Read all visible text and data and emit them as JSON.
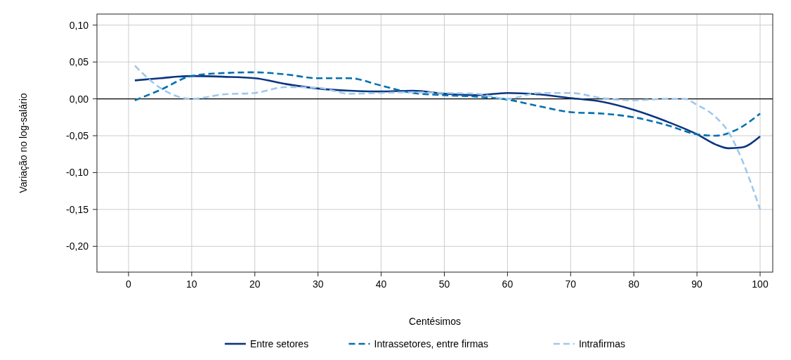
{
  "chart_data": {
    "type": "line",
    "xlabel": "Centésimos",
    "ylabel": "Variação no log-salário",
    "xlim": [
      -5,
      102
    ],
    "ylim": [
      -0.235,
      0.115
    ],
    "xticks": [
      0,
      10,
      20,
      30,
      40,
      50,
      60,
      70,
      80,
      90,
      100
    ],
    "yticks": [
      {
        "value": 0.1,
        "label": "0,10"
      },
      {
        "value": 0.05,
        "label": "0,05"
      },
      {
        "value": 0,
        "label": "0,00"
      },
      {
        "value": -0.05,
        "label": "-0,05"
      },
      {
        "value": -0.1,
        "label": "-0,10"
      },
      {
        "value": -0.15,
        "label": "-0,15"
      },
      {
        "value": -0.2,
        "label": "-0,20"
      }
    ],
    "grid": true,
    "legend": "bottom",
    "ref_lines": [
      {
        "axis": "y",
        "value": 0,
        "color": "#000000"
      }
    ],
    "series": [
      {
        "name": "Entre setores",
        "color": "#0a3580",
        "line_style": "solid",
        "x": [
          1,
          5,
          10,
          15,
          20,
          25,
          30,
          35,
          40,
          45,
          50,
          55,
          60,
          65,
          70,
          75,
          80,
          85,
          90,
          93,
          95,
          97,
          100
        ],
        "values": [
          0.025,
          0.028,
          0.031,
          0.03,
          0.028,
          0.02,
          0.014,
          0.011,
          0.01,
          0.011,
          0.007,
          0.005,
          0.008,
          0.006,
          0.001,
          -0.004,
          -0.015,
          -0.03,
          -0.048,
          -0.062,
          -0.067,
          -0.066,
          -0.051
        ]
      },
      {
        "name": "Intrassetores, entre firmas",
        "color": "#0070b0",
        "line_style": "dashed",
        "x": [
          1,
          5,
          10,
          15,
          20,
          25,
          30,
          35,
          40,
          45,
          50,
          55,
          60,
          65,
          70,
          75,
          80,
          85,
          90,
          93,
          96,
          100
        ],
        "values": [
          -0.002,
          0.012,
          0.031,
          0.035,
          0.036,
          0.033,
          0.028,
          0.028,
          0.018,
          0.008,
          0.005,
          0.003,
          -0.001,
          -0.01,
          -0.018,
          -0.02,
          -0.025,
          -0.035,
          -0.048,
          -0.05,
          -0.043,
          -0.02
        ]
      },
      {
        "name": "Intrafirmas",
        "color": "#9fc8eb",
        "line_style": "dashed",
        "x": [
          1,
          5,
          10,
          15,
          20,
          25,
          30,
          35,
          40,
          45,
          50,
          55,
          60,
          65,
          70,
          75,
          80,
          85,
          88,
          90,
          93,
          95,
          97,
          100
        ],
        "values": [
          0.045,
          0.015,
          0,
          0.006,
          0.008,
          0.016,
          0.015,
          0.007,
          0.008,
          0.009,
          0.008,
          0.007,
          0,
          0.008,
          0.008,
          0.001,
          -0.002,
          0,
          0,
          -0.008,
          -0.025,
          -0.045,
          -0.08,
          -0.15
        ]
      }
    ]
  }
}
